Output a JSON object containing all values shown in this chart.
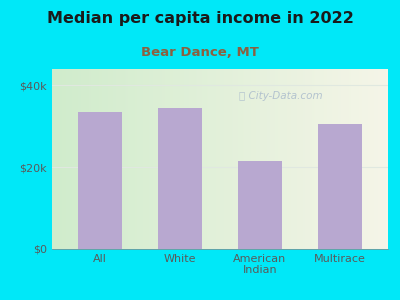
{
  "title": "Median per capita income in 2022",
  "subtitle": "Bear Dance, MT",
  "categories": [
    "All",
    "White",
    "American\nIndian",
    "Multirace"
  ],
  "values": [
    33500,
    34500,
    21500,
    30500
  ],
  "bar_color": "#b8a8d0",
  "background_outer": "#00e8f8",
  "background_inner_topleft": "#e8f5e0",
  "background_inner_bottomleft": "#d0eccc",
  "background_inner_right": "#f8f8f0",
  "title_color": "#1a1a1a",
  "subtitle_color": "#8b6040",
  "axis_label_color": "#5a5a5a",
  "yticks": [
    0,
    20000,
    40000
  ],
  "ytick_labels": [
    "$0",
    "$20k",
    "$40k"
  ],
  "ylim": [
    0,
    44000
  ],
  "watermark": "City-Data.com",
  "watermark_color": "#aabbcc",
  "grid_color": "#e0e8e0"
}
